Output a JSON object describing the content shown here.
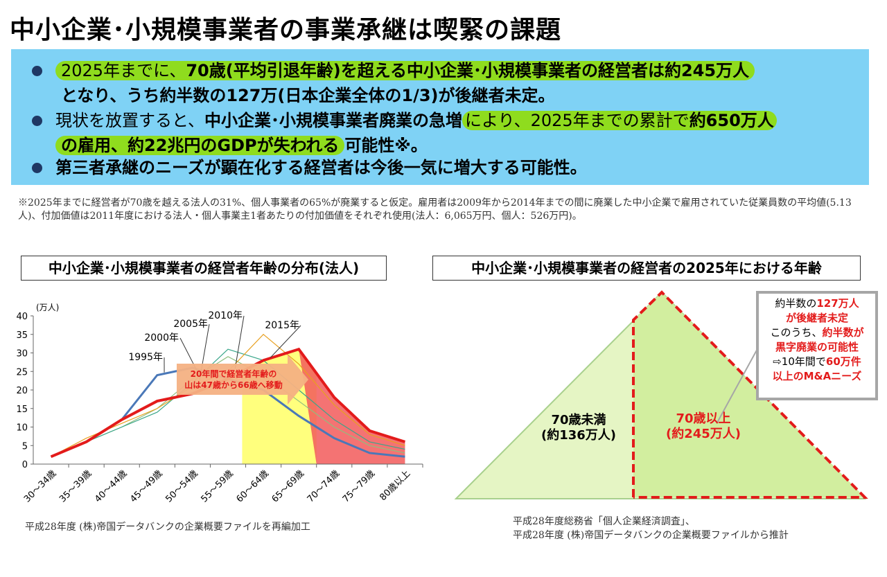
{
  "title": "中小企業･小規模事業者の事業承継は喫緊の課題",
  "bullets": {
    "b1_pre": "2025年までに、",
    "b1_bold": "70歳(平均引退年齢)を超える中小企業･小規模事業者の経営者は約245万人",
    "b1_line2": "となり、うち約半数の127万(日本企業全体の1/3)が後継者未定。",
    "b2_pre": "現状を放置すると、",
    "b2_bold1": "中小企業･小規模事業者廃業の急増",
    "b2_mid": "により、2025年までの累計で",
    "b2_bold2": "約650万人",
    "b2_line2_bold": "の雇用、約22兆円のGDPが失われる",
    "b2_line2_tail": "可能性※。",
    "b3": "第三者承継のニーズが顕在化する経営者は今後一気に増大する可能性。"
  },
  "note": "※2025年までに経営者が70歳を越える法人の31%、個人事業者の65%が廃業すると仮定。雇用者は2009年から2014年までの間に廃業した中小企業で雇用されていた従業員数の平均値(5.13人)、付加価値は2011年度における法人・個人事業主1者あたりの付加価値をそれぞれ使用(法人：6,065万円、個人：526万円)。",
  "left_title": "中小企業･小規模事業者の経営者年齢の分布(法人)",
  "right_title": "中小企業･小規模事業者の経営者の2025年における年齢",
  "left_source": "平成28年度 (株)帝国データバンクの企業概要ファイルを再編加工",
  "right_source1": "平成28年度総務省「個人企業経済調査」、",
  "right_source2": "平成28年度 (株)帝国データバンクの企業概要ファイルから推計",
  "chart_data": {
    "type": "line",
    "title": "中小企業･小規模事業者の経営者年齢の分布(法人)",
    "ylabel": "(万人)",
    "xlabel": "",
    "ylim": [
      0,
      40
    ],
    "yticks": [
      0,
      5,
      10,
      15,
      20,
      25,
      30,
      35,
      40
    ],
    "categories": [
      "30～34歳",
      "35～39歳",
      "40～44歳",
      "45～49歳",
      "50～54歳",
      "55～59歳",
      "60～64歳",
      "65～69歳",
      "70～74歳",
      "75～79歳",
      "80歳以上"
    ],
    "series": [
      {
        "name": "1995年",
        "color": "#4a78b8",
        "values": [
          2,
          6,
          12,
          24,
          26,
          23,
          20,
          13,
          7,
          3,
          2
        ]
      },
      {
        "name": "2000年",
        "color": "#8fbf7f",
        "values": [
          2,
          6,
          10,
          15,
          23,
          29,
          24,
          17,
          10,
          5,
          3
        ]
      },
      {
        "name": "2005年",
        "color": "#3aa68a",
        "values": [
          2,
          6,
          10,
          14,
          22,
          31,
          28,
          20,
          12,
          6,
          4
        ]
      },
      {
        "name": "2010年",
        "color": "#e8a020",
        "values": [
          2,
          7,
          11,
          15,
          21,
          25,
          35,
          27,
          16,
          8,
          5
        ]
      },
      {
        "name": "2015年",
        "color": "#e31b1b",
        "values": [
          2,
          6,
          12,
          17,
          19,
          23,
          28,
          31,
          18,
          9,
          6
        ]
      }
    ],
    "arrow_label_1": "20年間で経営者年齢の",
    "arrow_label_2": "山は47歳から66歳へ移動"
  },
  "pyramid": {
    "under70_label": "70歳未満",
    "under70_value": "(約136万人)",
    "over70_label": "70歳以上",
    "over70_value": "(約245万人)"
  },
  "callout": {
    "l1a": "約半数の",
    "l1b": "127万人",
    "l2": "が後継者未定",
    "l3a": "このうち、",
    "l3b": "約半数が",
    "l4": "黒字廃業の可能性",
    "l5a": "⇨10年間で",
    "l5b": "60万件",
    "l6": "以上のM&Aニーズ"
  },
  "colors": {
    "accent_blue": "#7fd2f5",
    "highlight_green": "#8fdc1e",
    "red": "#e31b1b",
    "pyramid_fill": "#e5f5c4"
  }
}
